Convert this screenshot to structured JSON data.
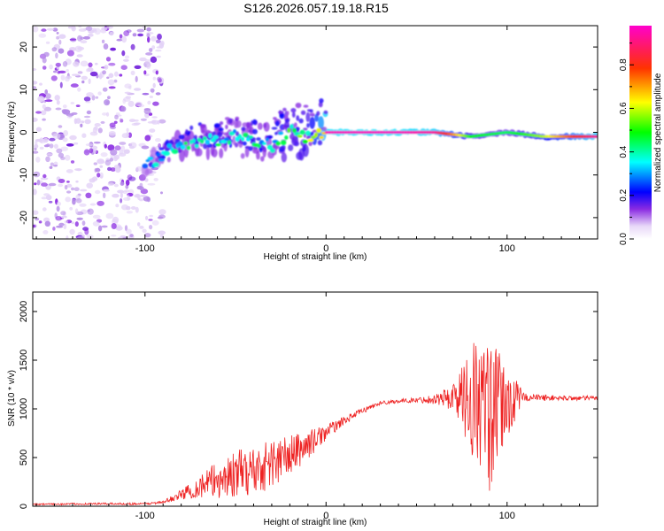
{
  "figure_title": "S126.2026.057.19.18.R15",
  "chart_data": [
    {
      "type": "heatmap",
      "title": "S126.2026.057.19.18.R15",
      "xlabel": "Height of straight line (km)",
      "ylabel": "Frequency (Hz)",
      "xlim": [
        -162,
        150
      ],
      "ylim": [
        -25,
        25
      ],
      "x_ticks": [
        -100,
        0,
        100
      ],
      "y_ticks": [
        -20,
        -10,
        0,
        10,
        20
      ],
      "colorbar": {
        "label": "Normalized spectral amplitude",
        "range": [
          0,
          0.98
        ],
        "ticks": [
          0.0,
          0.2,
          0.4,
          0.6,
          0.8
        ],
        "tick_labels": [
          "0.0",
          "0.2",
          "0.4",
          "0.6",
          "0.8"
        ],
        "colormap": [
          "#ffffff",
          "#8a2be2",
          "#0000ff",
          "#00ffff",
          "#00ff00",
          "#ffff00",
          "#ff0000",
          "#ff00ff"
        ]
      },
      "signal_track": {
        "x": [
          -100,
          -90,
          -80,
          -70,
          -60,
          -50,
          -40,
          -30,
          -20,
          -10,
          0,
          20,
          40,
          60,
          80,
          100,
          120,
          150
        ],
        "freq": [
          -8,
          -5,
          -3,
          -2,
          -2,
          -1,
          -2,
          -3,
          0,
          -1,
          0,
          0,
          0,
          0,
          -1,
          0,
          -1,
          -1
        ],
        "amplitude": [
          0.3,
          0.35,
          0.4,
          0.38,
          0.4,
          0.35,
          0.4,
          0.38,
          0.5,
          0.5,
          0.98,
          0.98,
          0.98,
          0.95,
          0.5,
          0.45,
          0.6,
          0.95
        ]
      },
      "noise_region_x": [
        -162,
        -100
      ],
      "noise_density": 0.3
    },
    {
      "type": "line",
      "xlabel": "Height of straight line (km)",
      "ylabel": "SNR (10 * v/v)",
      "xlim": [
        -162,
        150
      ],
      "ylim": [
        0,
        2200
      ],
      "x_ticks": [
        -100,
        0,
        100
      ],
      "y_ticks": [
        0,
        500,
        1000,
        1500,
        2000
      ],
      "color": "#ee2222",
      "envelope": {
        "x": [
          -162,
          -130,
          -100,
          -90,
          -80,
          -70,
          -60,
          -50,
          -40,
          -30,
          -20,
          -10,
          0,
          10,
          20,
          30,
          40,
          50,
          60,
          70,
          75,
          80,
          85,
          90,
          95,
          100,
          105,
          110,
          130,
          150
        ],
        "mean": [
          20,
          25,
          25,
          40,
          120,
          200,
          270,
          330,
          370,
          440,
          520,
          630,
          760,
          880,
          980,
          1060,
          1080,
          1090,
          1100,
          1120,
          1140,
          1100,
          1050,
          900,
          1000,
          1050,
          1100,
          1120,
          1110,
          1110
        ],
        "amp": [
          8,
          10,
          10,
          15,
          50,
          120,
          200,
          240,
          260,
          260,
          220,
          150,
          80,
          40,
          30,
          20,
          20,
          25,
          50,
          150,
          300,
          650,
          700,
          800,
          600,
          400,
          200,
          40,
          25,
          25
        ]
      }
    }
  ]
}
